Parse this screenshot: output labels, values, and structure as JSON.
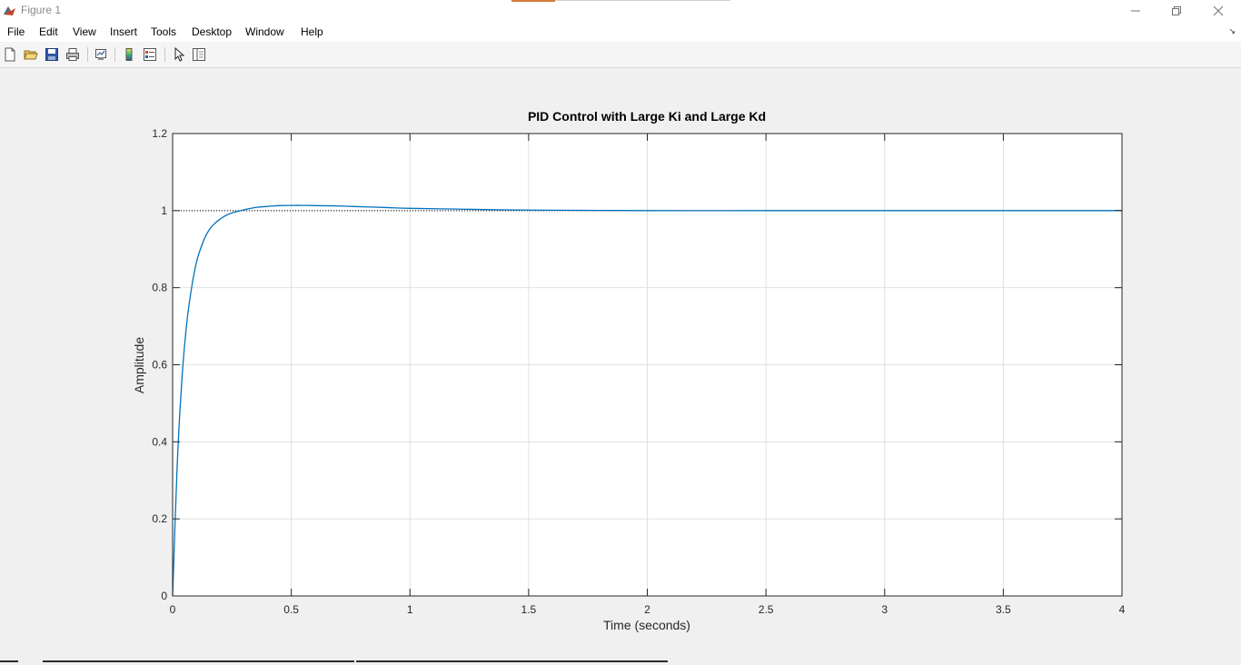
{
  "window": {
    "title": "Figure 1",
    "minimize_icon": "minimize-icon",
    "restore_icon": "restore-icon",
    "close_icon": "close-icon"
  },
  "menu": {
    "items": [
      "File",
      "Edit",
      "View",
      "Insert",
      "Tools",
      "Desktop",
      "Window",
      "Help"
    ]
  },
  "toolbar": {
    "icons": [
      "new-figure-icon",
      "open-file-icon",
      "save-icon",
      "print-icon",
      "link-plot-icon",
      "insert-colorbar-icon",
      "insert-legend-icon",
      "edit-plot-icon",
      "property-inspector-icon"
    ]
  },
  "colors": {
    "line": "#0072bd",
    "grid": "#e0e0e0",
    "axes_bg": "#ffffff",
    "figure_bg": "#f0f0f0"
  },
  "chart_data": {
    "type": "line",
    "title": "PID Control with Large Ki and Large Kd",
    "xlabel": "Time (seconds)",
    "ylabel": "Amplitude",
    "xlim": [
      0,
      4
    ],
    "ylim": [
      0,
      1.2
    ],
    "xticks": [
      0,
      0.5,
      1,
      1.5,
      2,
      2.5,
      3,
      3.5,
      4
    ],
    "xtick_labels": [
      "0",
      "0.5",
      "1",
      "1.5",
      "2",
      "2.5",
      "3",
      "3.5",
      "4"
    ],
    "yticks": [
      0,
      0.2,
      0.4,
      0.6,
      0.8,
      1.0,
      1.2
    ],
    "ytick_labels": [
      "0",
      "0.2",
      "0.4",
      "0.6",
      "0.8",
      "1",
      "1.2"
    ],
    "grid": true,
    "reference_line": {
      "y": 1.0,
      "style": "dotted"
    },
    "series": [
      {
        "x": [
          0,
          0.02,
          0.04,
          0.06,
          0.08,
          0.1,
          0.12,
          0.14,
          0.16,
          0.18,
          0.2,
          0.22,
          0.25,
          0.28,
          0.3,
          0.33,
          0.36,
          0.4,
          0.45,
          0.5,
          0.55,
          0.6,
          0.7,
          0.8,
          0.9,
          1.0,
          1.2,
          1.4,
          1.6,
          1.8,
          2.0,
          2.5,
          3.0,
          3.5,
          4.0
        ],
        "y": [
          0,
          0.35,
          0.57,
          0.71,
          0.8,
          0.865,
          0.905,
          0.935,
          0.955,
          0.968,
          0.978,
          0.986,
          0.994,
          0.999,
          1.002,
          1.006,
          1.009,
          1.011,
          1.013,
          1.0135,
          1.0135,
          1.013,
          1.012,
          1.01,
          1.008,
          1.006,
          1.004,
          1.002,
          1.001,
          1.0005,
          1.0,
          1.0,
          1.0,
          1.0,
          1.0
        ]
      }
    ]
  }
}
